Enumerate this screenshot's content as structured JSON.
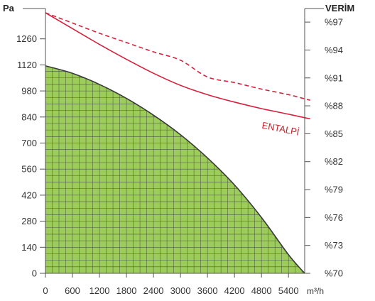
{
  "chart_data": {
    "type": "line",
    "title": "",
    "xlabel": "m³/h",
    "ylabel_left": "Pa",
    "ylabel_right": "VERİM",
    "xlim": [
      0,
      5760
    ],
    "ylim_left": [
      0,
      1400
    ],
    "ylim_right": [
      70,
      98
    ],
    "x_ticks": [
      "0",
      "600",
      "1200",
      "1800",
      "2400",
      "3000",
      "3600",
      "4200",
      "4800",
      "5400"
    ],
    "x_tick_values": [
      0,
      600,
      1200,
      1800,
      2400,
      3000,
      3600,
      4200,
      4800,
      5400
    ],
    "y_left_ticks": [
      "0",
      "140",
      "280",
      "420",
      "560",
      "700",
      "840",
      "980",
      "1120",
      "1260"
    ],
    "y_left_tick_values": [
      0,
      140,
      280,
      420,
      560,
      700,
      840,
      980,
      1120,
      1260
    ],
    "y_right_ticks": [
      "%70",
      "%73",
      "%76",
      "%79",
      "%82",
      "%85",
      "%88",
      "%91",
      "%94",
      "%97"
    ],
    "y_right_tick_values": [
      70,
      73,
      76,
      79,
      82,
      85,
      88,
      91,
      94,
      97
    ],
    "grid": true,
    "colors": {
      "grid": "#4a4a4a",
      "fill": "#9ccc5a",
      "pressure_line": "#3a3a3a",
      "efficiency": "#d4213d",
      "axis": "#555555"
    },
    "series": [
      {
        "kind": "pressure",
        "axis": "left",
        "x": [
          0,
          600,
          1200,
          1800,
          2400,
          3000,
          3600,
          4200,
          4800,
          5400,
          5760
        ],
        "y": [
          1115,
          1075,
          1015,
          940,
          850,
          745,
          620,
          475,
          300,
          100,
          0
        ]
      },
      {
        "kind": "efficiency",
        "axis": "right",
        "style": "dashed",
        "x": [
          0,
          600,
          1200,
          1800,
          2400,
          3000,
          3600,
          4200,
          4800,
          5400,
          5880
        ],
        "y": [
          98.0,
          96.9,
          95.8,
          94.8,
          93.8,
          92.9,
          91.1,
          90.5,
          89.8,
          89.2,
          88.6
        ]
      },
      {
        "kind": "efficiency",
        "axis": "right",
        "style": "solid",
        "name": "ENTALPİ",
        "x": [
          0,
          600,
          1200,
          1800,
          2400,
          3000,
          3600,
          4200,
          4800,
          5400,
          5880
        ],
        "y": [
          98.0,
          96.3,
          94.6,
          93.0,
          91.5,
          90.2,
          89.2,
          88.4,
          87.7,
          87.1,
          86.6
        ]
      }
    ],
    "annotations": [
      {
        "text": "ENTALPİ",
        "x": 4800,
        "y": 85.6,
        "rotate": 11
      }
    ]
  }
}
